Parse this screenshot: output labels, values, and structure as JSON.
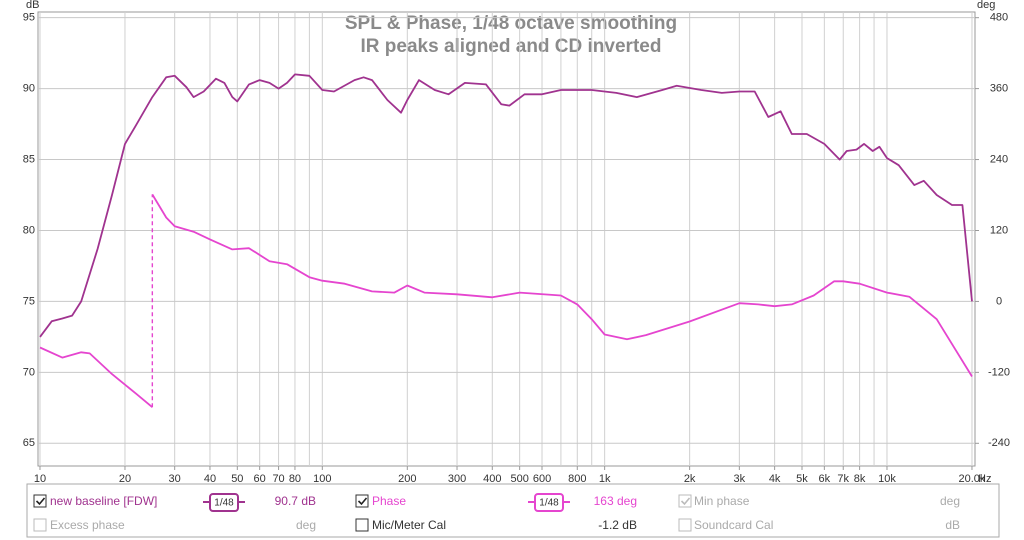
{
  "chart_data": {
    "type": "line",
    "title": "SPL & Phase, 1/48 octave smoothing",
    "subtitle": "IR peaks aligned and CD inverted",
    "y_unit": "dB",
    "y2_unit": "deg",
    "x_unit": "Hz",
    "xscale": "log",
    "xlim": [
      9.84,
      20500
    ],
    "xticks": [
      10,
      20,
      30,
      40,
      50,
      60,
      70,
      80,
      100,
      200,
      300,
      400,
      500,
      600,
      800,
      {
        "value": 1000,
        "label": "1k"
      },
      {
        "value": 2000,
        "label": "2k"
      },
      {
        "value": 3000,
        "label": "3k"
      },
      {
        "value": 4000,
        "label": "4k"
      },
      {
        "value": 5000,
        "label": "5k"
      },
      {
        "value": 6000,
        "label": "6k"
      },
      {
        "value": 7000,
        "label": "7k"
      },
      {
        "value": 8000,
        "label": "8k"
      },
      {
        "value": 10000,
        "label": "10k"
      },
      {
        "value": 20000,
        "label": "20.0k"
      }
    ],
    "xgrid": [
      10,
      20,
      30,
      40,
      50,
      60,
      70,
      80,
      90,
      100,
      200,
      300,
      400,
      500,
      600,
      700,
      800,
      900,
      1000,
      2000,
      3000,
      4000,
      5000,
      6000,
      7000,
      8000,
      9000,
      10000,
      20000
    ],
    "ylim": [
      63.4,
      95.4
    ],
    "yticks": [
      65,
      70,
      75,
      80,
      85,
      90,
      95
    ],
    "y2lim": [
      -278.4,
      489.6
    ],
    "y2ticks": [
      -240,
      -120,
      0,
      120,
      240,
      360,
      480
    ],
    "grid": true,
    "series": [
      {
        "name": "new baseline [FDW]",
        "color": "#a0338f",
        "x": [
          10,
          11,
          12,
          13,
          14,
          16,
          18,
          20,
          22,
          25,
          28,
          30,
          33,
          35,
          38,
          42,
          45,
          48,
          50,
          55,
          60,
          65,
          70,
          75,
          80,
          90,
          100,
          110,
          130,
          140,
          150,
          170,
          190,
          200,
          220,
          250,
          280,
          320,
          380,
          430,
          460,
          520,
          600,
          700,
          900,
          1100,
          1300,
          1600,
          1800,
          2200,
          2600,
          3000,
          3400,
          3800,
          4200,
          4600,
          5200,
          6000,
          6800,
          7200,
          7800,
          8300,
          8900,
          9400,
          10000,
          11000,
          12500,
          13500,
          15000,
          17000,
          18500,
          20000
        ],
        "values": [
          72.5,
          73.6,
          73.8,
          74,
          75,
          78.7,
          82.5,
          86.1,
          87.5,
          89.4,
          90.8,
          90.9,
          90.1,
          89.4,
          89.8,
          90.7,
          90.4,
          89.4,
          89.1,
          90.3,
          90.6,
          90.4,
          90,
          90.4,
          91,
          90.9,
          89.9,
          89.8,
          90.6,
          90.8,
          90.6,
          89.2,
          88.3,
          89.2,
          90.6,
          89.9,
          89.6,
          90.4,
          90.3,
          88.9,
          88.8,
          89.6,
          89.6,
          89.9,
          89.9,
          89.7,
          89.4,
          89.9,
          90.2,
          89.9,
          89.7,
          89.8,
          89.8,
          88,
          88.4,
          86.8,
          86.8,
          86.1,
          85,
          85.6,
          85.7,
          86.1,
          85.6,
          85.9,
          85.1,
          84.6,
          83.2,
          83.5,
          82.5,
          81.8,
          81.8,
          75
        ]
      },
      {
        "name": "Phase",
        "color": "#e545cf",
        "axis": "y2",
        "x": [
          10,
          12,
          14,
          15,
          18,
          22,
          25,
          null,
          25,
          28,
          30,
          35,
          40,
          48,
          55,
          65,
          75,
          90,
          100,
          120,
          150,
          180,
          200,
          230,
          300,
          400,
          500,
          700,
          800,
          900,
          1000,
          1200,
          1400,
          2000,
          3000,
          3500,
          4000,
          4600,
          5500,
          6500,
          7000,
          8000,
          10000,
          12000,
          15000,
          20000
        ],
        "values": [
          -78,
          -95,
          -86,
          -88,
          -123,
          -157,
          -179,
          null,
          181,
          142,
          127,
          118,
          105,
          88,
          90,
          68,
          63,
          41,
          35,
          30,
          17,
          15,
          27,
          15,
          12,
          7,
          15,
          10,
          -5,
          -30,
          -56,
          -64,
          -57,
          -34,
          -3,
          -5,
          -8,
          -5,
          10,
          34,
          34,
          30,
          15,
          8,
          -30,
          -127
        ]
      }
    ]
  },
  "panel": {
    "spl_smoothing": "1/48",
    "spl_value": "90.7 dB",
    "phase_smoothing": "1/48",
    "phase_value": "163 deg",
    "min_phase": "Min phase",
    "min_phase_unit": "deg",
    "excess_phase": "Excess phase",
    "excess_phase_unit": "deg",
    "mic_cal": "Mic/Meter Cal",
    "mic_cal_value": "-1.2 dB",
    "soundcard_cal": "Soundcard Cal",
    "soundcard_cal_unit": "dB"
  }
}
